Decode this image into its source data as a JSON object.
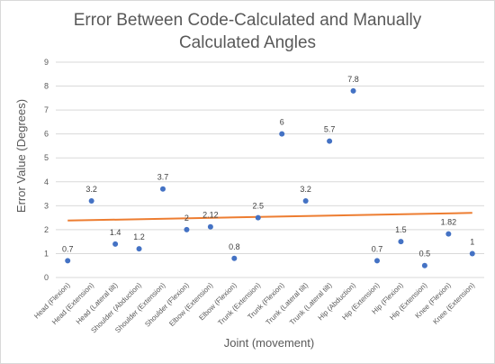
{
  "chart_data": {
    "type": "scatter",
    "title_lines": [
      "Error Between Code-Calculated and Manually",
      "Calculated Angles"
    ],
    "xlabel": "Joint (movement)",
    "ylabel": "Error Value (Degrees)",
    "ylim": [
      0,
      9
    ],
    "yticks": [
      "0",
      "1",
      "2",
      "3",
      "4",
      "5",
      "6",
      "7",
      "8",
      "9"
    ],
    "categories": [
      "Head (Flexion)",
      "Head (Extension)",
      "Head (Lateral tilt)",
      "Shoulder (Abduction)",
      "Shoulder (Extension)",
      "Shoulder (Flexion)",
      "Elbow (Extension)",
      "Elbow (Flexion)",
      "Trunk (Extension)",
      "Trunk (Flexion)",
      "Trunk (Lateral tilt)",
      "Trunk (Lateral tilt)",
      "Hip (Abduction)",
      "Hip (Extension)",
      "Hip (Flexion)",
      "Hip (Extension)",
      "Knee (Flexion)",
      "Knee (Extension)"
    ],
    "values": [
      0.7,
      3.2,
      1.4,
      1.2,
      3.7,
      2,
      2.12,
      0.8,
      2.5,
      6,
      3.2,
      5.7,
      7.8,
      0.7,
      1.5,
      0.5,
      1.82,
      1
    ],
    "data_labels": [
      "0.7",
      "3.2",
      "1.4",
      "1.2",
      "3.7",
      "2",
      "2.12",
      "0.8",
      "2.5",
      "6",
      "3.2",
      "5.7",
      "7.8",
      "0.7",
      "1.5",
      "0.5",
      "1.82",
      "1"
    ],
    "trendline": {
      "type": "linear",
      "start": 2.38,
      "end": 2.7
    },
    "grid": true,
    "legend": "none",
    "colors": {
      "points": "#4472c4",
      "trendline": "#ed7d31",
      "grid": "#d9d9d9",
      "text": "#595959"
    }
  }
}
